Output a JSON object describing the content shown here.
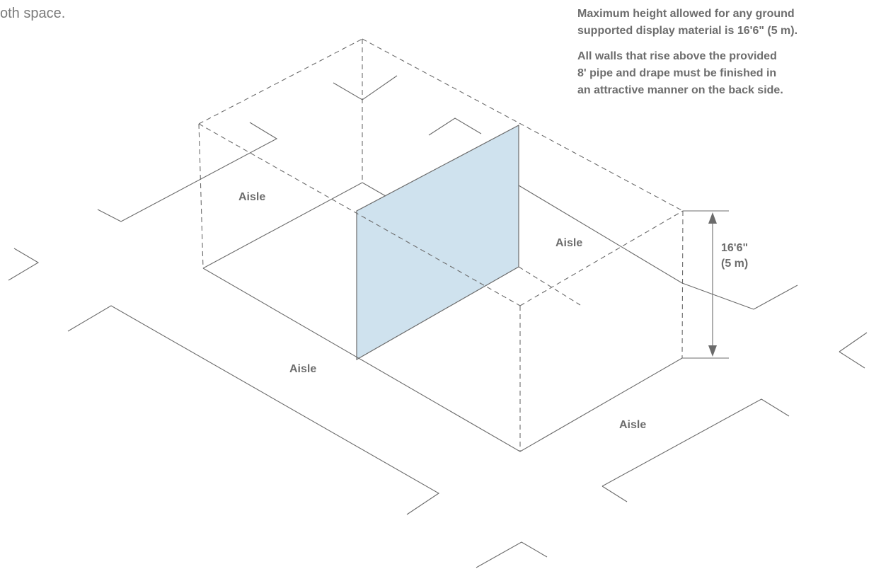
{
  "intro_fragment": "oth space.",
  "notes": {
    "height_note": [
      "Maximum height allowed for any ground",
      "supported display material is 16'6\" (5 m)."
    ],
    "finish_note": [
      "All walls that rise above the provided",
      "8' pipe and drape must be finished in",
      "an attractive manner on the back side."
    ]
  },
  "aisles": {
    "back_left": "Aisle",
    "back_right": "Aisle",
    "front_left": "Aisle",
    "front_right": "Aisle"
  },
  "dimension": {
    "feet": "16'6\"",
    "meters": "(5 m)"
  },
  "colors": {
    "wall_fill": "#cfe2ee",
    "line": "#6b6b6b",
    "text": "#6d6d6d"
  }
}
